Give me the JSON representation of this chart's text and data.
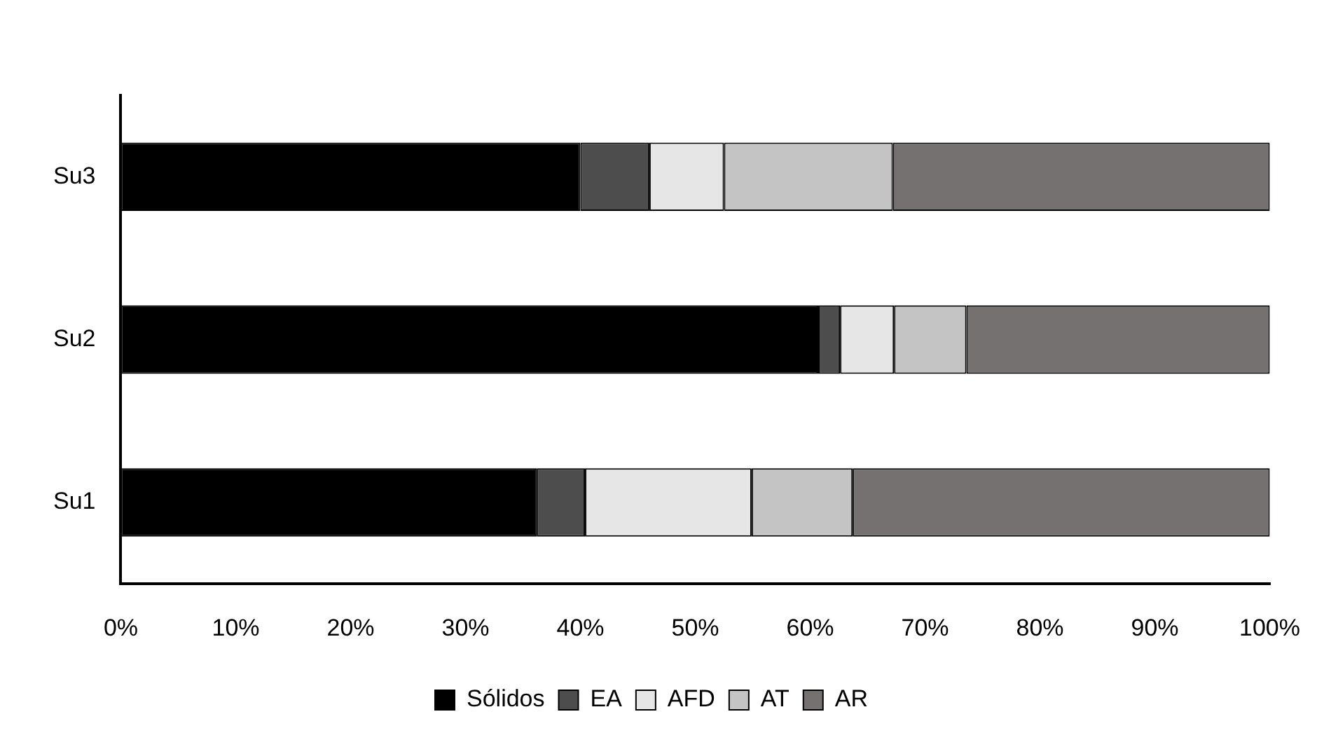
{
  "chart_data": {
    "type": "bar",
    "orientation": "horizontal",
    "stacked": true,
    "categories": [
      "Su3",
      "Su2",
      "Su1"
    ],
    "series": [
      {
        "name": "Sólidos",
        "color": "#000000",
        "values": [
          40.0,
          60.7,
          36.2
        ]
      },
      {
        "name": "EA",
        "color": "#4d4d4d",
        "values": [
          6.0,
          1.9,
          4.2
        ]
      },
      {
        "name": "AFD",
        "color": "#e6e6e6",
        "values": [
          6.5,
          4.7,
          14.5
        ]
      },
      {
        "name": "AT",
        "color": "#c4c4c4",
        "values": [
          14.7,
          6.3,
          8.8
        ]
      },
      {
        "name": "AR",
        "color": "#767171",
        "values": [
          32.8,
          26.4,
          36.3
        ]
      }
    ],
    "xlim": [
      0,
      100
    ],
    "xticks": [
      {
        "value": 0,
        "label": "0%"
      },
      {
        "value": 10,
        "label": "10%"
      },
      {
        "value": 20,
        "label": "20%"
      },
      {
        "value": 30,
        "label": "30%"
      },
      {
        "value": 40,
        "label": "40%"
      },
      {
        "value": 50,
        "label": "50%"
      },
      {
        "value": 60,
        "label": "60%"
      },
      {
        "value": 70,
        "label": "70%"
      },
      {
        "value": 80,
        "label": "80%"
      },
      {
        "value": 90,
        "label": "90%"
      },
      {
        "value": 100,
        "label": "100%"
      }
    ],
    "grid": false,
    "legend": "bottom"
  }
}
